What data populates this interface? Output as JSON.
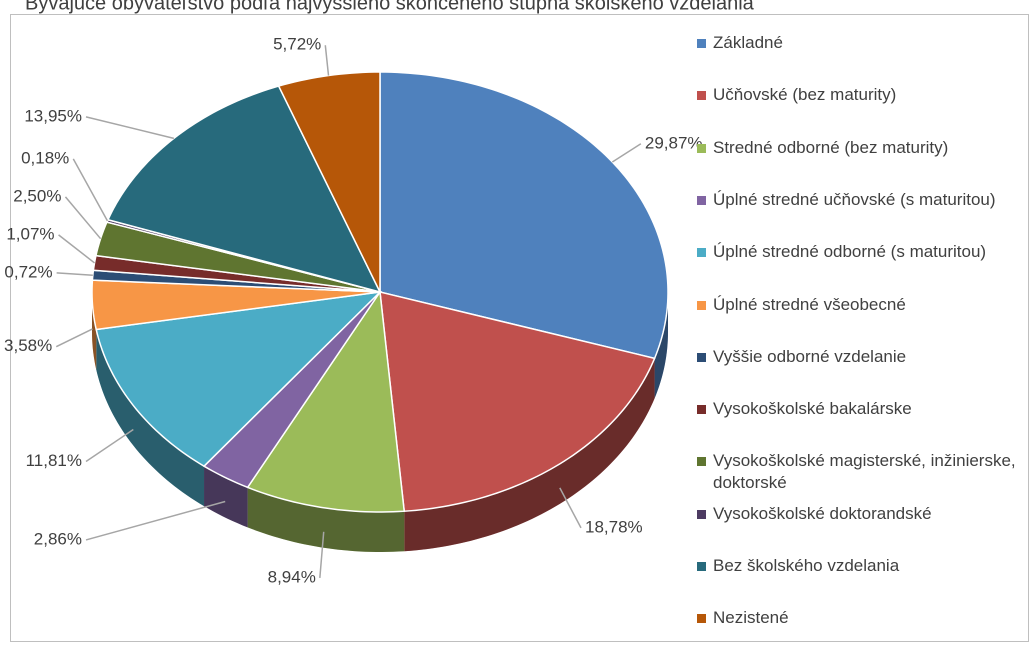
{
  "chart_data": {
    "type": "pie",
    "title": "Bývajúce obyvateľstvo podľa najvyššieho skončeného stupňa školského vzdelania",
    "categories": [
      "Základné",
      "Učňovské (bez maturity)",
      "Stredné odborné (bez maturity)",
      "Úplné stredné učňovské (s maturitou)",
      "Úplné stredné odborné (s maturitou)",
      "Úplné stredné všeobecné",
      "Vyššie odborné vzdelanie",
      "Vysokoškolské bakalárske",
      "Vysokoškolské magisterské, inžinierske, doktorské",
      "Vysokoškolské doktorandské",
      "Bez školského vzdelania",
      "Nezistené"
    ],
    "values": [
      29.87,
      18.78,
      8.94,
      2.86,
      11.81,
      3.58,
      0.72,
      1.07,
      2.5,
      0.18,
      13.95,
      5.72
    ],
    "value_labels": [
      "29,87%",
      "18,78%",
      "8,94%",
      "2,86%",
      "11,81%",
      "3,58%",
      "0,72%",
      "1,07%",
      "2,50%",
      "0,18%",
      "13,95%",
      "5,72%"
    ],
    "colors": [
      "#4f81bd",
      "#c0504d",
      "#9bbb59",
      "#8064a2",
      "#4bacc6",
      "#f79646",
      "#2c4d75",
      "#772c2a",
      "#5f7530",
      "#4d3b62",
      "#276a7c",
      "#b65708"
    ],
    "legend": "right"
  }
}
